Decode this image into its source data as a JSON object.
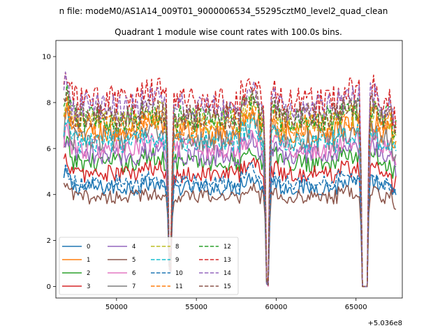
{
  "figure": {
    "suptitle": "n file: modeM0/AS1A14_009T01_9000006534_55295cztM0_level2_quad_clean",
    "background": "#ffffff"
  },
  "chart_data": {
    "type": "line",
    "title": "Quadrant 1 module wise count rates with 100.0s bins.",
    "xlabel": "",
    "ylabel": "",
    "x_offset_label": "+5.036e8",
    "xlim": [
      46200,
      67900
    ],
    "ylim": [
      -0.5,
      10.7
    ],
    "xticks": [
      50000,
      55000,
      60000,
      65000
    ],
    "xtick_labels": [
      "50000",
      "55000",
      "60000",
      "65000"
    ],
    "yticks": [
      0,
      2,
      4,
      6,
      8,
      10
    ],
    "ytick_labels": [
      "0",
      "2",
      "4",
      "6",
      "8",
      "10"
    ],
    "grid": false,
    "legend_position": "lower-left",
    "legend_columns": 4,
    "x_range_data": [
      46700,
      67500
    ],
    "segments": [
      [
        46700,
        53200
      ],
      [
        53500,
        59300
      ],
      [
        59600,
        65300
      ],
      [
        65800,
        67500
      ]
    ],
    "gaps": [
      [
        53200,
        53500
      ],
      [
        59300,
        59600
      ],
      [
        65300,
        65800
      ]
    ],
    "series": [
      {
        "name": "0",
        "color": "#1f77b4",
        "dash": "solid",
        "level": 4.3
      },
      {
        "name": "1",
        "color": "#ff7f0e",
        "dash": "solid",
        "level": 6.7
      },
      {
        "name": "2",
        "color": "#2ca02c",
        "dash": "solid",
        "level": 5.4
      },
      {
        "name": "3",
        "color": "#d62728",
        "dash": "solid",
        "level": 4.9
      },
      {
        "name": "4",
        "color": "#9467bd",
        "dash": "solid",
        "level": 5.7
      },
      {
        "name": "5",
        "color": "#8c564b",
        "dash": "solid",
        "level": 3.9
      },
      {
        "name": "6",
        "color": "#e377c2",
        "dash": "solid",
        "level": 6.0
      },
      {
        "name": "7",
        "color": "#7f7f7f",
        "dash": "solid",
        "level": 6.4
      },
      {
        "name": "8",
        "color": "#bcbd22",
        "dash": "dashed",
        "level": 7.2
      },
      {
        "name": "9",
        "color": "#17becf",
        "dash": "dashed",
        "level": 6.3
      },
      {
        "name": "10",
        "color": "#1f77b4",
        "dash": "dashed",
        "level": 4.5
      },
      {
        "name": "11",
        "color": "#ff7f0e",
        "dash": "dashed",
        "level": 7.0
      },
      {
        "name": "12",
        "color": "#2ca02c",
        "dash": "dashed",
        "level": 7.3
      },
      {
        "name": "13",
        "color": "#d62728",
        "dash": "dashed",
        "level": 8.1
      },
      {
        "name": "14",
        "color": "#9467bd",
        "dash": "dashed",
        "level": 7.8
      },
      {
        "name": "15",
        "color": "#8c564b",
        "dash": "dashed",
        "level": 7.4
      }
    ]
  }
}
